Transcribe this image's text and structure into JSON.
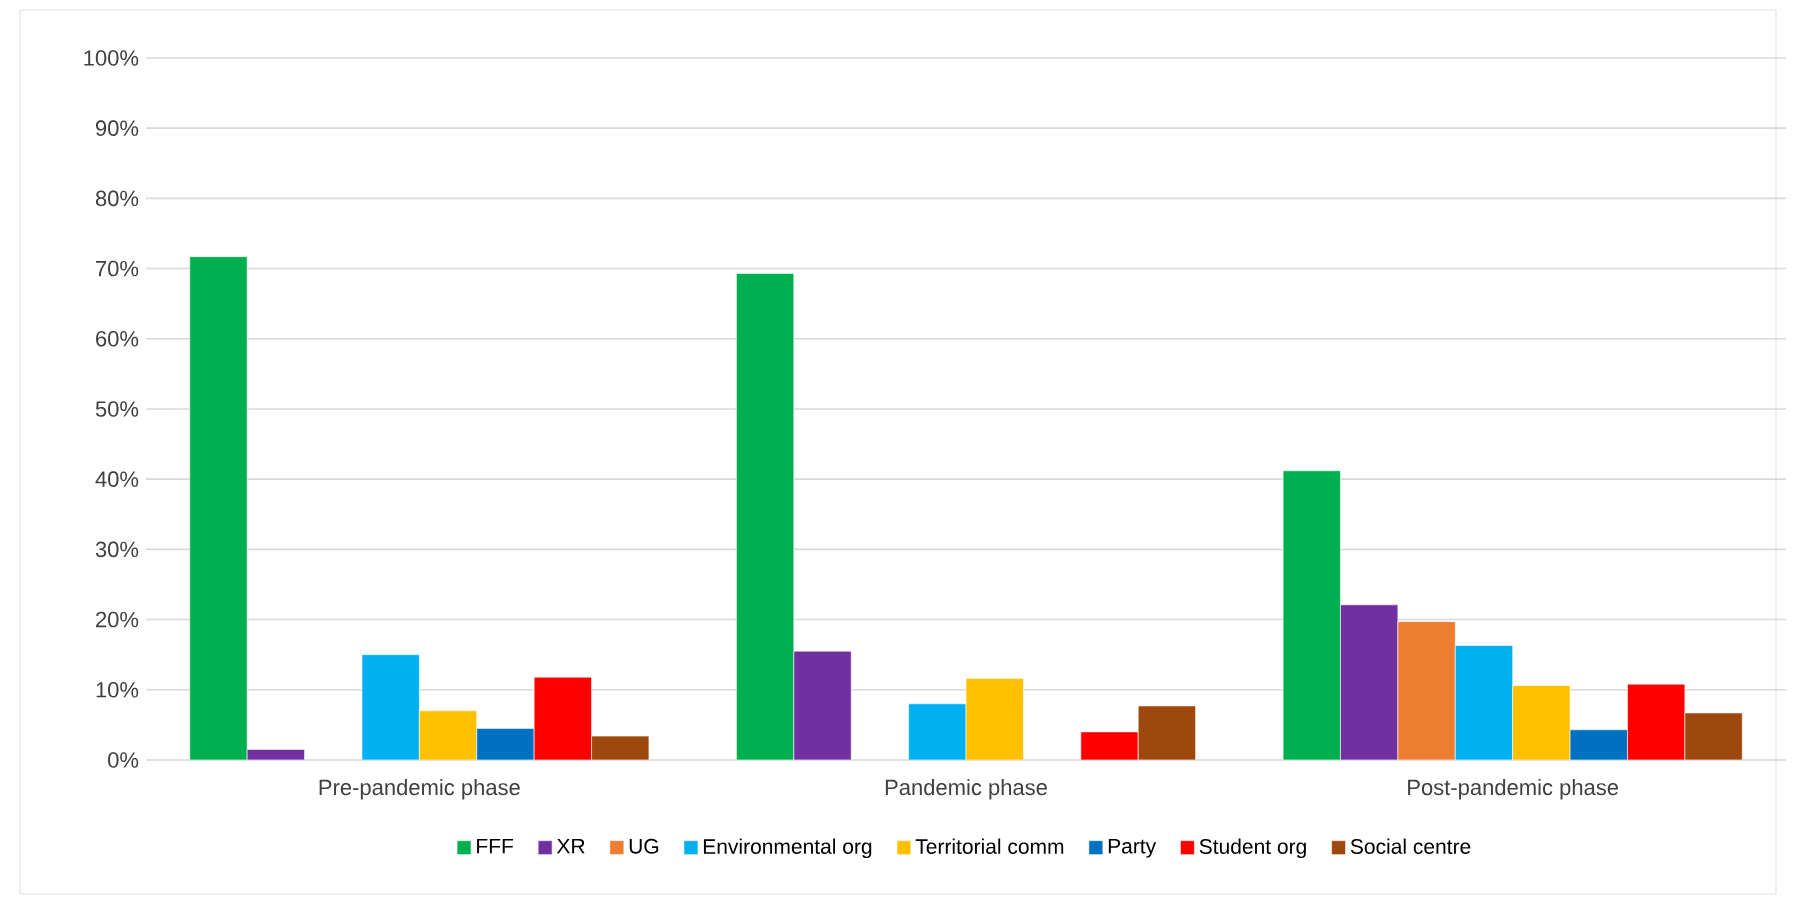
{
  "chart_data": {
    "type": "bar",
    "categories": [
      "Pre-pandemic phase",
      "Pandemic phase",
      "Post-pandemic phase"
    ],
    "series": [
      {
        "name": "FFF",
        "color": "#00b050",
        "values": [
          71.7,
          69.3,
          41.2
        ]
      },
      {
        "name": "XR",
        "color": "#7030a0",
        "values": [
          1.5,
          15.5,
          22.1
        ]
      },
      {
        "name": "UG",
        "color": "#ed7d31",
        "values": [
          null,
          null,
          19.7
        ]
      },
      {
        "name": "Environmental org",
        "color": "#00b0f0",
        "values": [
          15.0,
          8.0,
          16.3
        ]
      },
      {
        "name": "Territorial comm",
        "color": "#ffc000",
        "values": [
          7.0,
          11.6,
          10.6
        ]
      },
      {
        "name": "Party",
        "color": "#0070c0",
        "values": [
          4.5,
          null,
          4.3
        ]
      },
      {
        "name": "Student org",
        "color": "#ff0000",
        "values": [
          11.8,
          4.0,
          10.8
        ]
      },
      {
        "name": "Social centre",
        "color": "#9e480e",
        "values": [
          3.4,
          7.7,
          6.7
        ]
      }
    ],
    "ylim": [
      0,
      100
    ],
    "yticks": [
      {
        "value": 0,
        "label": "0%"
      },
      {
        "value": 10,
        "label": "10%"
      },
      {
        "value": 20,
        "label": "20%"
      },
      {
        "value": 30,
        "label": "30%"
      },
      {
        "value": 40,
        "label": "40%"
      },
      {
        "value": 50,
        "label": "50%"
      },
      {
        "value": 60,
        "label": "60%"
      },
      {
        "value": 70,
        "label": "70%"
      },
      {
        "value": 80,
        "label": "80%"
      },
      {
        "value": 90,
        "label": "90%"
      },
      {
        "value": 100,
        "label": "100%"
      }
    ],
    "grid": "y",
    "legend": "bottom"
  }
}
